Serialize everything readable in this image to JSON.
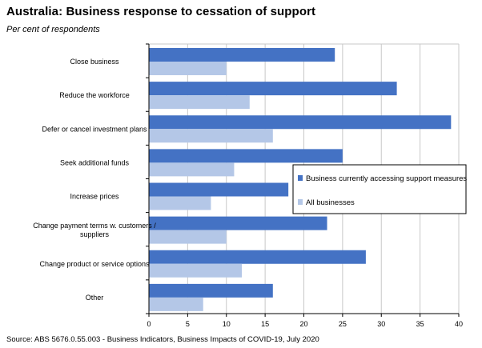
{
  "title": "Australia:  Business response to cessation of support",
  "subtitle": "Per cent of respondents",
  "source": "Source: ABS 5676.0.55.003 - Business Indicators, Business Impacts of COVID-19, July 2020",
  "chart_data": {
    "type": "bar",
    "orientation": "horizontal",
    "categories": [
      "Close business",
      "Reduce the workforce",
      "Defer or cancel investment plans",
      "Seek additional funds",
      "Increase prices",
      "Change payment terms w. customers / suppliers",
      "Change product or service options",
      "Other"
    ],
    "category_label_lines": [
      [
        "Close business"
      ],
      [
        "Reduce the workforce"
      ],
      [
        "Defer or cancel investment plans"
      ],
      [
        "Seek additional funds"
      ],
      [
        "Increase prices"
      ],
      [
        "Change payment terms w. customers /",
        "suppliers"
      ],
      [
        "Change product or service options"
      ],
      [
        "Other"
      ]
    ],
    "series": [
      {
        "name": "Business currently accessing support measures",
        "color": "#4472c4",
        "values": [
          24,
          32,
          39,
          25,
          18,
          23,
          28,
          16
        ]
      },
      {
        "name": "All businesses",
        "color": "#b4c7e7",
        "values": [
          10,
          13,
          16,
          11,
          8,
          10,
          12,
          7
        ]
      }
    ],
    "xlim": [
      0,
      40
    ],
    "xticks": [
      0,
      5,
      10,
      15,
      20,
      25,
      30,
      35,
      40
    ],
    "grid": "vertical",
    "grid_color": "#c8c8c8",
    "legend": "right"
  }
}
